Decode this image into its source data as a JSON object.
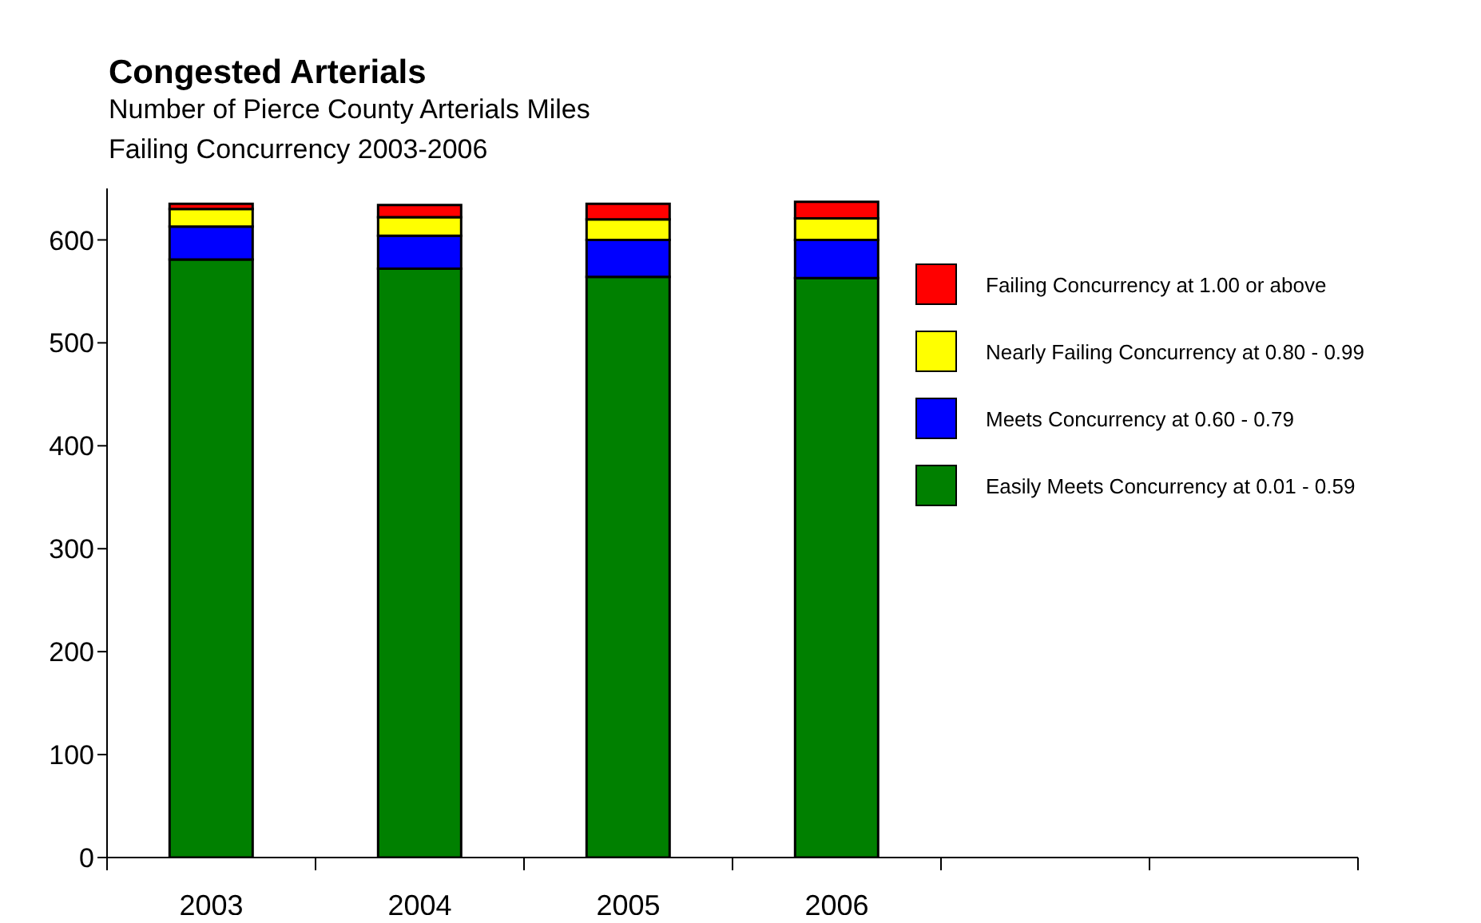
{
  "chart_data": {
    "type": "bar",
    "title": "Congested Arterials",
    "subtitle": "Number of Pierce County Arterials Miles\nFailing Concurrency 2003-2006",
    "categories": [
      "2003",
      "2004",
      "2005",
      "2006",
      null,
      null
    ],
    "stacked": true,
    "ylim": [
      0,
      650
    ],
    "yticks": [
      0,
      100,
      200,
      300,
      400,
      500,
      600
    ],
    "grid": false,
    "legend": "right",
    "series": [
      {
        "name": "Easily Meets Concurrency at 0.01 - 0.59",
        "color": "#008000",
        "values": [
          581,
          572,
          564,
          563,
          null,
          null
        ]
      },
      {
        "name": "Meets Concurrency at 0.60 - 0.79",
        "color": "#0000ff",
        "values": [
          32,
          32,
          36,
          37,
          null,
          null
        ]
      },
      {
        "name": "Nearly Failing Concurrency at 0.80 - 0.99",
        "color": "#ffff00",
        "values": [
          17,
          18,
          20,
          21,
          null,
          null
        ]
      },
      {
        "name": "Failing Concurrency at 1.00 or above",
        "color": "#ff0000",
        "values": [
          5,
          12,
          15,
          16,
          null,
          null
        ]
      }
    ]
  }
}
